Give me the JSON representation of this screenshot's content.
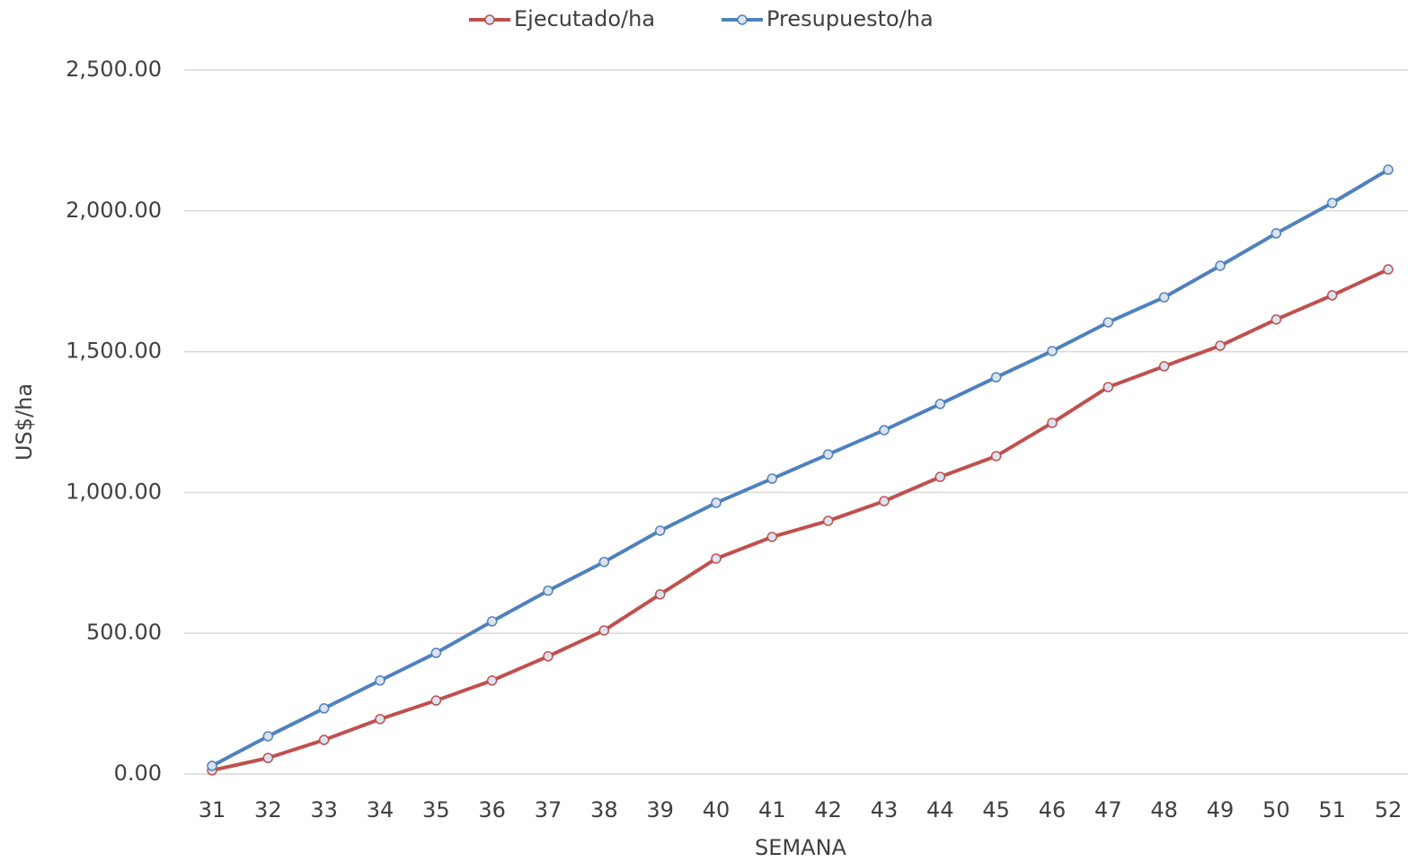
{
  "chart_data": {
    "type": "line",
    "x_label": "SEMANA",
    "y_label": "US$/ha",
    "categories": [
      31,
      32,
      33,
      34,
      35,
      36,
      37,
      38,
      39,
      40,
      41,
      42,
      43,
      44,
      45,
      46,
      47,
      48,
      49,
      50,
      51,
      52
    ],
    "series": [
      {
        "name": "Ejecutado/ha",
        "color": "#c0504d",
        "values": [
          13,
          57,
          121,
          195,
          261,
          332,
          418,
          510,
          638,
          765,
          842,
          899,
          969,
          1055,
          1129,
          1247,
          1374,
          1448,
          1521,
          1614,
          1700,
          1792
        ]
      },
      {
        "name": "Presupuesto/ha",
        "color": "#4f81bd",
        "values": [
          29,
          134,
          233,
          332,
          430,
          542,
          651,
          753,
          864,
          963,
          1049,
          1135,
          1221,
          1314,
          1409,
          1502,
          1604,
          1693,
          1805,
          1920,
          2028,
          2146
        ]
      }
    ],
    "ylim": [
      0,
      2500
    ],
    "yticks": [
      {
        "value": 0,
        "label": "0.00"
      },
      {
        "value": 500,
        "label": "500.00"
      },
      {
        "value": 1000,
        "label": "1,000.00"
      },
      {
        "value": 1500,
        "label": "1,500.00"
      },
      {
        "value": 2000,
        "label": "2,000.00"
      },
      {
        "value": 2500,
        "label": "2,500.00"
      }
    ],
    "grid": true,
    "legend": "top"
  }
}
